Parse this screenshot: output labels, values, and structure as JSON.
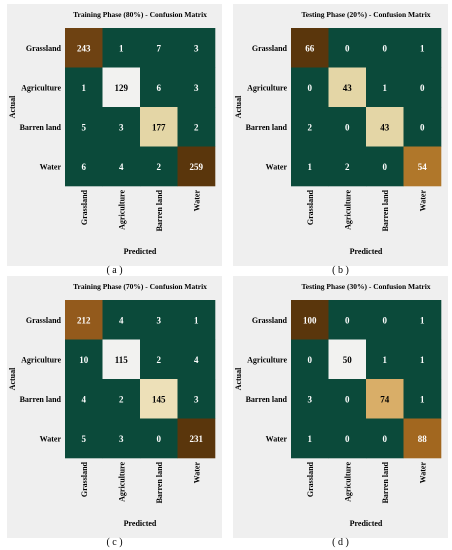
{
  "chart_data": [
    {
      "type": "heatmap",
      "title": "Training Phase (80%) - Confusion Matrix",
      "panel_label": "( a )",
      "xlabel": "Predicted",
      "ylabel": "Actual",
      "rows": [
        "Grassland",
        "Agriculture",
        "Barren land",
        "Water"
      ],
      "cols": [
        "Grassland",
        "Agriculture",
        "Barren land",
        "Water"
      ],
      "values": [
        [
          243,
          1,
          7,
          3
        ],
        [
          1,
          129,
          6,
          3
        ],
        [
          5,
          3,
          177,
          2
        ],
        [
          6,
          4,
          2,
          259
        ]
      ],
      "colors": [
        [
          "#6e4212",
          "#0b4a3a",
          "#0b4a3a",
          "#0b4a3a"
        ],
        [
          "#0b4a3a",
          "#f2f2f0",
          "#0b4a3a",
          "#0b4a3a"
        ],
        [
          "#0b4a3a",
          "#0b4a3a",
          "#e4d6a6",
          "#0b4a3a"
        ],
        [
          "#0b4a3a",
          "#0b4a3a",
          "#0b4a3a",
          "#5a360c"
        ]
      ]
    },
    {
      "type": "heatmap",
      "title": "Testing Phase (20%) - Confusion Matrix",
      "panel_label": "( b )",
      "xlabel": "Predicted",
      "ylabel": "Actual",
      "rows": [
        "Grassland",
        "Agriculture",
        "Barren land",
        "Water"
      ],
      "cols": [
        "Grassland",
        "Agriculture",
        "Barren land",
        "Water"
      ],
      "values": [
        [
          66,
          0,
          0,
          1
        ],
        [
          0,
          43,
          1,
          0
        ],
        [
          2,
          0,
          43,
          0
        ],
        [
          1,
          2,
          0,
          54
        ]
      ],
      "colors": [
        [
          "#5a360c",
          "#0b4a3a",
          "#0b4a3a",
          "#0b4a3a"
        ],
        [
          "#0b4a3a",
          "#e4d6a6",
          "#0b4a3a",
          "#0b4a3a"
        ],
        [
          "#0b4a3a",
          "#0b4a3a",
          "#e4d6a6",
          "#0b4a3a"
        ],
        [
          "#0b4a3a",
          "#0b4a3a",
          "#0b4a3a",
          "#b0772a"
        ]
      ]
    },
    {
      "type": "heatmap",
      "title": "Training Phase (70%) - Confusion Matrix",
      "panel_label": "( c )",
      "xlabel": "Predicted",
      "ylabel": "Actual",
      "rows": [
        "Grassland",
        "Agriculture",
        "Barren land",
        "Water"
      ],
      "cols": [
        "Grassland",
        "Agriculture",
        "Barren land",
        "Water"
      ],
      "values": [
        [
          212,
          4,
          3,
          1
        ],
        [
          10,
          115,
          2,
          4
        ],
        [
          4,
          2,
          145,
          3
        ],
        [
          5,
          3,
          0,
          231
        ]
      ],
      "colors": [
        [
          "#935a1c",
          "#0b4a3a",
          "#0b4a3a",
          "#0b4a3a"
        ],
        [
          "#0b4a3a",
          "#f2f2f0",
          "#0b4a3a",
          "#0b4a3a"
        ],
        [
          "#0b4a3a",
          "#0b4a3a",
          "#ede0b8",
          "#0b4a3a"
        ],
        [
          "#0b4a3a",
          "#0b4a3a",
          "#0b4a3a",
          "#5a360c"
        ]
      ]
    },
    {
      "type": "heatmap",
      "title": "Testing Phase (30%) - Confusion Matrix",
      "panel_label": "( d )",
      "xlabel": "Predicted",
      "ylabel": "Actual",
      "rows": [
        "Grassland",
        "Agriculture",
        "Barren land",
        "Water"
      ],
      "cols": [
        "Grassland",
        "Agriculture",
        "Barren land",
        "Water"
      ],
      "values": [
        [
          100,
          0,
          0,
          1
        ],
        [
          0,
          50,
          1,
          1
        ],
        [
          3,
          0,
          74,
          1
        ],
        [
          1,
          0,
          0,
          88
        ]
      ],
      "colors": [
        [
          "#5a360c",
          "#0b4a3a",
          "#0b4a3a",
          "#0b4a3a"
        ],
        [
          "#0b4a3a",
          "#f2f2f0",
          "#0b4a3a",
          "#0b4a3a"
        ],
        [
          "#0b4a3a",
          "#0b4a3a",
          "#d9ae68",
          "#0b4a3a"
        ],
        [
          "#0b4a3a",
          "#0b4a3a",
          "#0b4a3a",
          "#a2671f"
        ]
      ]
    }
  ],
  "style": {
    "panel_background": "#efefef",
    "dark_text": "#000000",
    "light_text": "#ffffff"
  }
}
